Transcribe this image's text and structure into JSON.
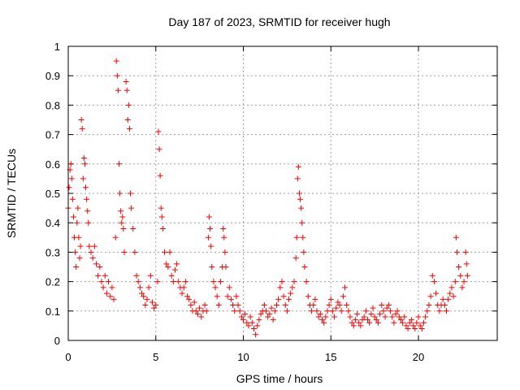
{
  "chart_data": {
    "type": "scatter",
    "title": "Day 187 of 2023, SRMTID for receiver hugh",
    "xlabel": "GPS time / hours",
    "ylabel": "SRMTID / TECUs",
    "xlim": [
      0,
      24.5
    ],
    "ylim": [
      0,
      1
    ],
    "x_ticks": [
      0,
      5,
      10,
      15,
      20
    ],
    "y_ticks": [
      0,
      0.1,
      0.2,
      0.3,
      0.4,
      0.5,
      0.6,
      0.7,
      0.8,
      0.9,
      1
    ],
    "x_tick_labels": [
      "0",
      "5",
      "10",
      "15",
      "20"
    ],
    "y_tick_labels": [
      "0",
      "0.1",
      "0.2",
      "0.3",
      "0.4",
      "0.5",
      "0.6",
      "0.7",
      "0.8",
      "0.9",
      "1"
    ],
    "grid": true,
    "marker": "+",
    "color": "#ff0000",
    "series": [
      {
        "name": "SRMTID",
        "points": [
          [
            0.0,
            0.45
          ],
          [
            0.05,
            0.52
          ],
          [
            0.1,
            0.58
          ],
          [
            0.15,
            0.6
          ],
          [
            0.2,
            0.55
          ],
          [
            0.25,
            0.48
          ],
          [
            0.3,
            0.42
          ],
          [
            0.35,
            0.35
          ],
          [
            0.4,
            0.3
          ],
          [
            0.45,
            0.25
          ],
          [
            0.5,
            0.4
          ],
          [
            0.55,
            0.45
          ],
          [
            0.6,
            0.35
          ],
          [
            0.65,
            0.28
          ],
          [
            0.7,
            0.32
          ],
          [
            0.75,
            0.75
          ],
          [
            0.8,
            0.72
          ],
          [
            0.85,
            0.55
          ],
          [
            0.9,
            0.62
          ],
          [
            0.95,
            0.6
          ],
          [
            1.0,
            0.52
          ],
          [
            1.05,
            0.48
          ],
          [
            1.1,
            0.44
          ],
          [
            1.15,
            0.4
          ],
          [
            1.2,
            0.32
          ],
          [
            1.3,
            0.3
          ],
          [
            1.4,
            0.28
          ],
          [
            1.5,
            0.32
          ],
          [
            1.6,
            0.26
          ],
          [
            1.7,
            0.22
          ],
          [
            1.8,
            0.25
          ],
          [
            1.9,
            0.2
          ],
          [
            2.0,
            0.18
          ],
          [
            2.1,
            0.22
          ],
          [
            2.2,
            0.16
          ],
          [
            2.3,
            0.2
          ],
          [
            2.4,
            0.15
          ],
          [
            2.5,
            0.18
          ],
          [
            2.6,
            0.14
          ],
          [
            2.7,
            0.35
          ],
          [
            2.75,
            0.95
          ],
          [
            2.8,
            0.9
          ],
          [
            2.85,
            0.85
          ],
          [
            2.9,
            0.6
          ],
          [
            2.95,
            0.5
          ],
          [
            3.0,
            0.44
          ],
          [
            3.05,
            0.4
          ],
          [
            3.1,
            0.42
          ],
          [
            3.15,
            0.38
          ],
          [
            3.2,
            0.3
          ],
          [
            3.3,
            0.88
          ],
          [
            3.35,
            0.85
          ],
          [
            3.4,
            0.75
          ],
          [
            3.45,
            0.8
          ],
          [
            3.5,
            0.72
          ],
          [
            3.55,
            0.5
          ],
          [
            3.6,
            0.45
          ],
          [
            3.7,
            0.38
          ],
          [
            3.8,
            0.3
          ],
          [
            3.9,
            0.22
          ],
          [
            4.0,
            0.2
          ],
          [
            4.1,
            0.18
          ],
          [
            4.2,
            0.16
          ],
          [
            4.3,
            0.15
          ],
          [
            4.4,
            0.12
          ],
          [
            4.5,
            0.14
          ],
          [
            4.6,
            0.18
          ],
          [
            4.7,
            0.22
          ],
          [
            4.8,
            0.13
          ],
          [
            4.9,
            0.11
          ],
          [
            5.0,
            0.12
          ],
          [
            5.1,
            0.2
          ],
          [
            5.15,
            0.71
          ],
          [
            5.2,
            0.65
          ],
          [
            5.25,
            0.56
          ],
          [
            5.3,
            0.45
          ],
          [
            5.35,
            0.42
          ],
          [
            5.4,
            0.38
          ],
          [
            5.5,
            0.3
          ],
          [
            5.6,
            0.26
          ],
          [
            5.7,
            0.25
          ],
          [
            5.8,
            0.3
          ],
          [
            5.9,
            0.22
          ],
          [
            6.0,
            0.2
          ],
          [
            6.1,
            0.24
          ],
          [
            6.2,
            0.26
          ],
          [
            6.3,
            0.2
          ],
          [
            6.4,
            0.18
          ],
          [
            6.5,
            0.16
          ],
          [
            6.6,
            0.18
          ],
          [
            6.7,
            0.2
          ],
          [
            6.8,
            0.15
          ],
          [
            6.9,
            0.14
          ],
          [
            7.0,
            0.12
          ],
          [
            7.1,
            0.1
          ],
          [
            7.2,
            0.13
          ],
          [
            7.3,
            0.1
          ],
          [
            7.4,
            0.09
          ],
          [
            7.5,
            0.11
          ],
          [
            7.6,
            0.08
          ],
          [
            7.7,
            0.1
          ],
          [
            7.8,
            0.12
          ],
          [
            7.9,
            0.1
          ],
          [
            8.0,
            0.35
          ],
          [
            8.05,
            0.42
          ],
          [
            8.1,
            0.38
          ],
          [
            8.15,
            0.32
          ],
          [
            8.2,
            0.25
          ],
          [
            8.3,
            0.2
          ],
          [
            8.4,
            0.18
          ],
          [
            8.5,
            0.15
          ],
          [
            8.6,
            0.12
          ],
          [
            8.7,
            0.2
          ],
          [
            8.8,
            0.25
          ],
          [
            8.85,
            0.38
          ],
          [
            8.9,
            0.35
          ],
          [
            8.95,
            0.3
          ],
          [
            9.0,
            0.25
          ],
          [
            9.1,
            0.15
          ],
          [
            9.2,
            0.18
          ],
          [
            9.3,
            0.14
          ],
          [
            9.4,
            0.12
          ],
          [
            9.5,
            0.1
          ],
          [
            9.6,
            0.15
          ],
          [
            9.7,
            0.12
          ],
          [
            9.8,
            0.1
          ],
          [
            9.9,
            0.08
          ],
          [
            10.0,
            0.07
          ],
          [
            10.1,
            0.09
          ],
          [
            10.2,
            0.06
          ],
          [
            10.3,
            0.05
          ],
          [
            10.4,
            0.08
          ],
          [
            10.5,
            0.06
          ],
          [
            10.6,
            0.04
          ],
          [
            10.7,
            0.02
          ],
          [
            10.8,
            0.05
          ],
          [
            10.9,
            0.07
          ],
          [
            11.0,
            0.09
          ],
          [
            11.1,
            0.1
          ],
          [
            11.2,
            0.12
          ],
          [
            11.3,
            0.1
          ],
          [
            11.4,
            0.08
          ],
          [
            11.5,
            0.09
          ],
          [
            11.6,
            0.11
          ],
          [
            11.7,
            0.07
          ],
          [
            11.8,
            0.1
          ],
          [
            11.9,
            0.12
          ],
          [
            12.0,
            0.14
          ],
          [
            12.1,
            0.18
          ],
          [
            12.2,
            0.2
          ],
          [
            12.3,
            0.15
          ],
          [
            12.4,
            0.12
          ],
          [
            12.5,
            0.1
          ],
          [
            12.6,
            0.14
          ],
          [
            12.7,
            0.16
          ],
          [
            12.8,
            0.18
          ],
          [
            12.9,
            0.2
          ],
          [
            13.0,
            0.28
          ],
          [
            13.05,
            0.35
          ],
          [
            13.1,
            0.55
          ],
          [
            13.15,
            0.59
          ],
          [
            13.2,
            0.5
          ],
          [
            13.25,
            0.48
          ],
          [
            13.3,
            0.45
          ],
          [
            13.35,
            0.4
          ],
          [
            13.4,
            0.35
          ],
          [
            13.45,
            0.3
          ],
          [
            13.5,
            0.25
          ],
          [
            13.6,
            0.2
          ],
          [
            13.7,
            0.15
          ],
          [
            13.8,
            0.12
          ],
          [
            13.9,
            0.1
          ],
          [
            14.0,
            0.12
          ],
          [
            14.1,
            0.14
          ],
          [
            14.2,
            0.1
          ],
          [
            14.3,
            0.08
          ],
          [
            14.4,
            0.09
          ],
          [
            14.5,
            0.07
          ],
          [
            14.6,
            0.06
          ],
          [
            14.7,
            0.08
          ],
          [
            14.8,
            0.1
          ],
          [
            14.9,
            0.12
          ],
          [
            15.0,
            0.14
          ],
          [
            15.1,
            0.1
          ],
          [
            15.2,
            0.08
          ],
          [
            15.3,
            0.11
          ],
          [
            15.4,
            0.13
          ],
          [
            15.5,
            0.12
          ],
          [
            15.6,
            0.1
          ],
          [
            15.7,
            0.15
          ],
          [
            15.8,
            0.18
          ],
          [
            15.9,
            0.12
          ],
          [
            16.0,
            0.1
          ],
          [
            16.1,
            0.08
          ],
          [
            16.2,
            0.06
          ],
          [
            16.3,
            0.05
          ],
          [
            16.4,
            0.07
          ],
          [
            16.5,
            0.09
          ],
          [
            16.6,
            0.06
          ],
          [
            16.7,
            0.05
          ],
          [
            16.8,
            0.07
          ],
          [
            16.9,
            0.08
          ],
          [
            17.0,
            0.1
          ],
          [
            17.1,
            0.07
          ],
          [
            17.2,
            0.06
          ],
          [
            17.3,
            0.09
          ],
          [
            17.4,
            0.11
          ],
          [
            17.5,
            0.08
          ],
          [
            17.6,
            0.07
          ],
          [
            17.7,
            0.06
          ],
          [
            17.8,
            0.09
          ],
          [
            17.9,
            0.12
          ],
          [
            18.0,
            0.1
          ],
          [
            18.1,
            0.08
          ],
          [
            18.2,
            0.11
          ],
          [
            18.3,
            0.12
          ],
          [
            18.4,
            0.1
          ],
          [
            18.5,
            0.08
          ],
          [
            18.6,
            0.06
          ],
          [
            18.7,
            0.09
          ],
          [
            18.8,
            0.1
          ],
          [
            18.9,
            0.08
          ],
          [
            19.0,
            0.07
          ],
          [
            19.1,
            0.06
          ],
          [
            19.2,
            0.08
          ],
          [
            19.3,
            0.05
          ],
          [
            19.4,
            0.04
          ],
          [
            19.5,
            0.06
          ],
          [
            19.6,
            0.07
          ],
          [
            19.7,
            0.05
          ],
          [
            19.8,
            0.04
          ],
          [
            19.9,
            0.06
          ],
          [
            20.0,
            0.08
          ],
          [
            20.1,
            0.05
          ],
          [
            20.2,
            0.04
          ],
          [
            20.3,
            0.06
          ],
          [
            20.4,
            0.08
          ],
          [
            20.5,
            0.1
          ],
          [
            20.6,
            0.12
          ],
          [
            20.7,
            0.15
          ],
          [
            20.8,
            0.22
          ],
          [
            20.9,
            0.2
          ],
          [
            21.0,
            0.16
          ],
          [
            21.1,
            0.12
          ],
          [
            21.2,
            0.1
          ],
          [
            21.3,
            0.12
          ],
          [
            21.4,
            0.14
          ],
          [
            21.5,
            0.12
          ],
          [
            21.6,
            0.1
          ],
          [
            21.7,
            0.14
          ],
          [
            21.8,
            0.16
          ],
          [
            21.9,
            0.18
          ],
          [
            22.0,
            0.15
          ],
          [
            22.1,
            0.2
          ],
          [
            22.15,
            0.35
          ],
          [
            22.2,
            0.3
          ],
          [
            22.3,
            0.25
          ],
          [
            22.4,
            0.22
          ],
          [
            22.5,
            0.18
          ],
          [
            22.6,
            0.2
          ],
          [
            22.7,
            0.3
          ],
          [
            22.75,
            0.26
          ],
          [
            22.8,
            0.22
          ]
        ]
      }
    ]
  }
}
